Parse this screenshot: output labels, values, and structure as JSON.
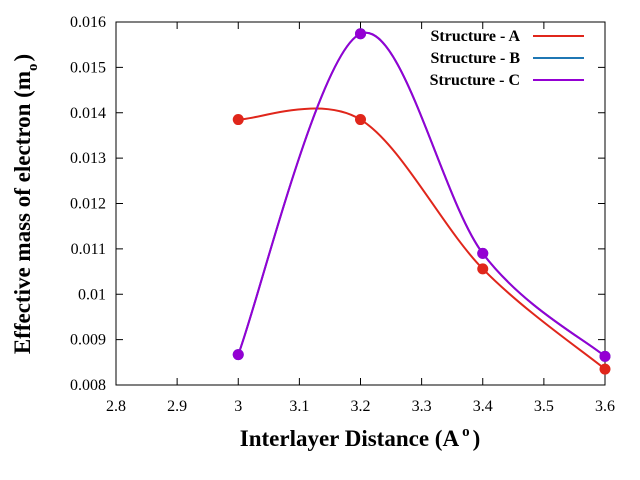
{
  "chart_data": {
    "type": "line",
    "xlabel": "Interlayer Distance (A",
    "xlabel_superscript": "o",
    "xlabel_suffix": ")",
    "ylabel": "Effective mass of electron (m",
    "ylabel_subscript": "o",
    "ylabel_suffix": ")",
    "xlim": [
      2.8,
      3.6
    ],
    "ylim": [
      0.008,
      0.016
    ],
    "x_ticks": [
      "2.8",
      "2.9",
      "3",
      "3.1",
      "3.2",
      "3.3",
      "3.4",
      "3.5",
      "3.6"
    ],
    "y_ticks": [
      "0.008",
      "0.009",
      "0.01",
      "0.011",
      "0.012",
      "0.013",
      "0.014",
      "0.015",
      "0.016"
    ],
    "x_tick_values": [
      2.8,
      2.9,
      3.0,
      3.1,
      3.2,
      3.3,
      3.4,
      3.5,
      3.6
    ],
    "y_tick_values": [
      0.008,
      0.009,
      0.01,
      0.011,
      0.012,
      0.013,
      0.014,
      0.015,
      0.016
    ],
    "legend_position": "top-right",
    "grid": false,
    "series": [
      {
        "name": "Structure - A",
        "color": "#e0261b",
        "x": [
          3.0,
          3.2,
          3.4,
          3.6
        ],
        "y": [
          0.01385,
          0.01385,
          0.01056,
          0.00835
        ]
      },
      {
        "name": "Structure - B",
        "color": "#1f77b4",
        "x": [
          3.0,
          3.2,
          3.4,
          3.6
        ],
        "y": [
          0.00867,
          0.01574,
          0.0109,
          0.00863
        ]
      },
      {
        "name": "Structure - C",
        "color": "#9400d3",
        "x": [
          3.0,
          3.2,
          3.4,
          3.6
        ],
        "y": [
          0.00867,
          0.01574,
          0.0109,
          0.00863
        ]
      }
    ]
  }
}
